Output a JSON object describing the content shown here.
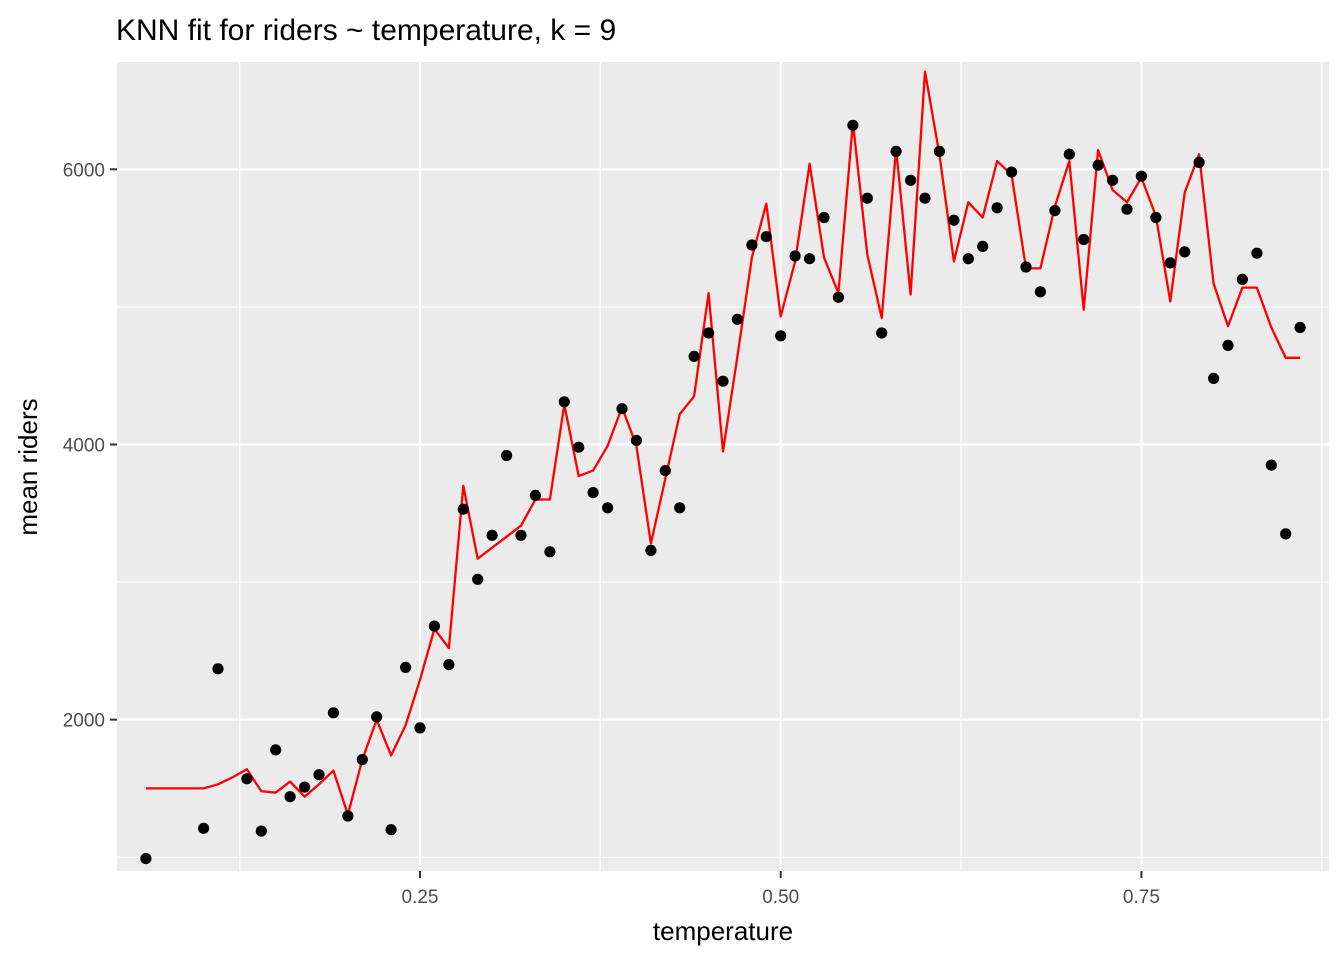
{
  "chart_data": {
    "type": "scatter",
    "title": "KNN fit for riders ~ temperature, k = 9",
    "xlabel": "temperature",
    "ylabel": "mean riders",
    "xlim": [
      0.04,
      0.88
    ],
    "ylim": [
      900,
      6780
    ],
    "x_ticks": [
      0.25,
      0.5,
      0.75
    ],
    "x_tick_labels": [
      "0.25",
      "0.50",
      "0.75"
    ],
    "x_minor_ticks": [
      0.125,
      0.375,
      0.625,
      0.875
    ],
    "y_ticks": [
      2000,
      4000,
      6000
    ],
    "y_tick_labels": [
      "2000",
      "4000",
      "6000"
    ],
    "y_minor_ticks": [
      1000,
      3000,
      5000
    ],
    "grid": true,
    "series": [
      {
        "kind": "points",
        "color": "#000000",
        "points": [
          [
            0.06,
            990
          ],
          [
            0.1,
            1210
          ],
          [
            0.11,
            2370
          ],
          [
            0.13,
            1570
          ],
          [
            0.14,
            1190
          ],
          [
            0.15,
            1780
          ],
          [
            0.16,
            1440
          ],
          [
            0.17,
            1510
          ],
          [
            0.18,
            1600
          ],
          [
            0.19,
            2050
          ],
          [
            0.2,
            1300
          ],
          [
            0.21,
            1710
          ],
          [
            0.22,
            2020
          ],
          [
            0.23,
            1200
          ],
          [
            0.24,
            2380
          ],
          [
            0.25,
            1940
          ],
          [
            0.26,
            2680
          ],
          [
            0.27,
            2400
          ],
          [
            0.28,
            3530
          ],
          [
            0.29,
            3020
          ],
          [
            0.3,
            3340
          ],
          [
            0.31,
            3920
          ],
          [
            0.32,
            3340
          ],
          [
            0.33,
            3630
          ],
          [
            0.34,
            3220
          ],
          [
            0.35,
            4310
          ],
          [
            0.36,
            3980
          ],
          [
            0.37,
            3650
          ],
          [
            0.38,
            3540
          ],
          [
            0.39,
            4260
          ],
          [
            0.4,
            4030
          ],
          [
            0.41,
            3230
          ],
          [
            0.42,
            3810
          ],
          [
            0.43,
            3540
          ],
          [
            0.44,
            4640
          ],
          [
            0.45,
            4810
          ],
          [
            0.46,
            4460
          ],
          [
            0.47,
            4910
          ],
          [
            0.48,
            5450
          ],
          [
            0.49,
            5510
          ],
          [
            0.5,
            4790
          ],
          [
            0.51,
            5370
          ],
          [
            0.52,
            5350
          ],
          [
            0.53,
            5650
          ],
          [
            0.54,
            5070
          ],
          [
            0.55,
            6320
          ],
          [
            0.56,
            5790
          ],
          [
            0.57,
            4810
          ],
          [
            0.58,
            6130
          ],
          [
            0.59,
            5920
          ],
          [
            0.6,
            5790
          ],
          [
            0.61,
            6130
          ],
          [
            0.62,
            5630
          ],
          [
            0.63,
            5350
          ],
          [
            0.64,
            5440
          ],
          [
            0.65,
            5720
          ],
          [
            0.66,
            5980
          ],
          [
            0.67,
            5290
          ],
          [
            0.68,
            5110
          ],
          [
            0.69,
            5700
          ],
          [
            0.7,
            6110
          ],
          [
            0.71,
            5490
          ],
          [
            0.72,
            6030
          ],
          [
            0.73,
            5920
          ],
          [
            0.74,
            5710
          ],
          [
            0.75,
            5950
          ],
          [
            0.76,
            5650
          ],
          [
            0.77,
            5320
          ],
          [
            0.78,
            5400
          ],
          [
            0.79,
            6050
          ],
          [
            0.8,
            4480
          ],
          [
            0.81,
            4720
          ],
          [
            0.82,
            5200
          ],
          [
            0.83,
            5390
          ],
          [
            0.84,
            3850
          ],
          [
            0.85,
            3350
          ],
          [
            0.86,
            4850
          ]
        ]
      },
      {
        "kind": "line",
        "color": "#ff0000",
        "points": [
          [
            0.06,
            1500
          ],
          [
            0.1,
            1500
          ],
          [
            0.11,
            1530
          ],
          [
            0.12,
            1580
          ],
          [
            0.13,
            1640
          ],
          [
            0.14,
            1480
          ],
          [
            0.15,
            1470
          ],
          [
            0.16,
            1550
          ],
          [
            0.17,
            1440
          ],
          [
            0.18,
            1530
          ],
          [
            0.19,
            1630
          ],
          [
            0.2,
            1310
          ],
          [
            0.21,
            1710
          ],
          [
            0.22,
            2000
          ],
          [
            0.23,
            1740
          ],
          [
            0.24,
            1960
          ],
          [
            0.25,
            2290
          ],
          [
            0.26,
            2660
          ],
          [
            0.27,
            2520
          ],
          [
            0.28,
            3700
          ],
          [
            0.29,
            3170
          ],
          [
            0.3,
            3250
          ],
          [
            0.31,
            3330
          ],
          [
            0.32,
            3410
          ],
          [
            0.33,
            3600
          ],
          [
            0.34,
            3600
          ],
          [
            0.35,
            4290
          ],
          [
            0.36,
            3770
          ],
          [
            0.37,
            3810
          ],
          [
            0.38,
            3990
          ],
          [
            0.39,
            4270
          ],
          [
            0.4,
            3990
          ],
          [
            0.41,
            3280
          ],
          [
            0.42,
            3750
          ],
          [
            0.43,
            4220
          ],
          [
            0.44,
            4350
          ],
          [
            0.45,
            5100
          ],
          [
            0.46,
            3950
          ],
          [
            0.47,
            4640
          ],
          [
            0.48,
            5360
          ],
          [
            0.49,
            5750
          ],
          [
            0.5,
            4930
          ],
          [
            0.51,
            5330
          ],
          [
            0.52,
            6040
          ],
          [
            0.53,
            5360
          ],
          [
            0.54,
            5100
          ],
          [
            0.55,
            6340
          ],
          [
            0.56,
            5380
          ],
          [
            0.57,
            4920
          ],
          [
            0.58,
            6150
          ],
          [
            0.59,
            5090
          ],
          [
            0.6,
            6710
          ],
          [
            0.61,
            6110
          ],
          [
            0.62,
            5330
          ],
          [
            0.63,
            5760
          ],
          [
            0.64,
            5650
          ],
          [
            0.65,
            6060
          ],
          [
            0.66,
            5960
          ],
          [
            0.67,
            5280
          ],
          [
            0.68,
            5280
          ],
          [
            0.69,
            5730
          ],
          [
            0.7,
            6060
          ],
          [
            0.71,
            4980
          ],
          [
            0.72,
            6140
          ],
          [
            0.73,
            5850
          ],
          [
            0.74,
            5760
          ],
          [
            0.75,
            5940
          ],
          [
            0.76,
            5660
          ],
          [
            0.77,
            5040
          ],
          [
            0.78,
            5830
          ],
          [
            0.79,
            6110
          ],
          [
            0.8,
            5170
          ],
          [
            0.81,
            4860
          ],
          [
            0.82,
            5140
          ],
          [
            0.83,
            5140
          ],
          [
            0.84,
            4850
          ],
          [
            0.85,
            4630
          ],
          [
            0.86,
            4630
          ]
        ]
      }
    ]
  }
}
